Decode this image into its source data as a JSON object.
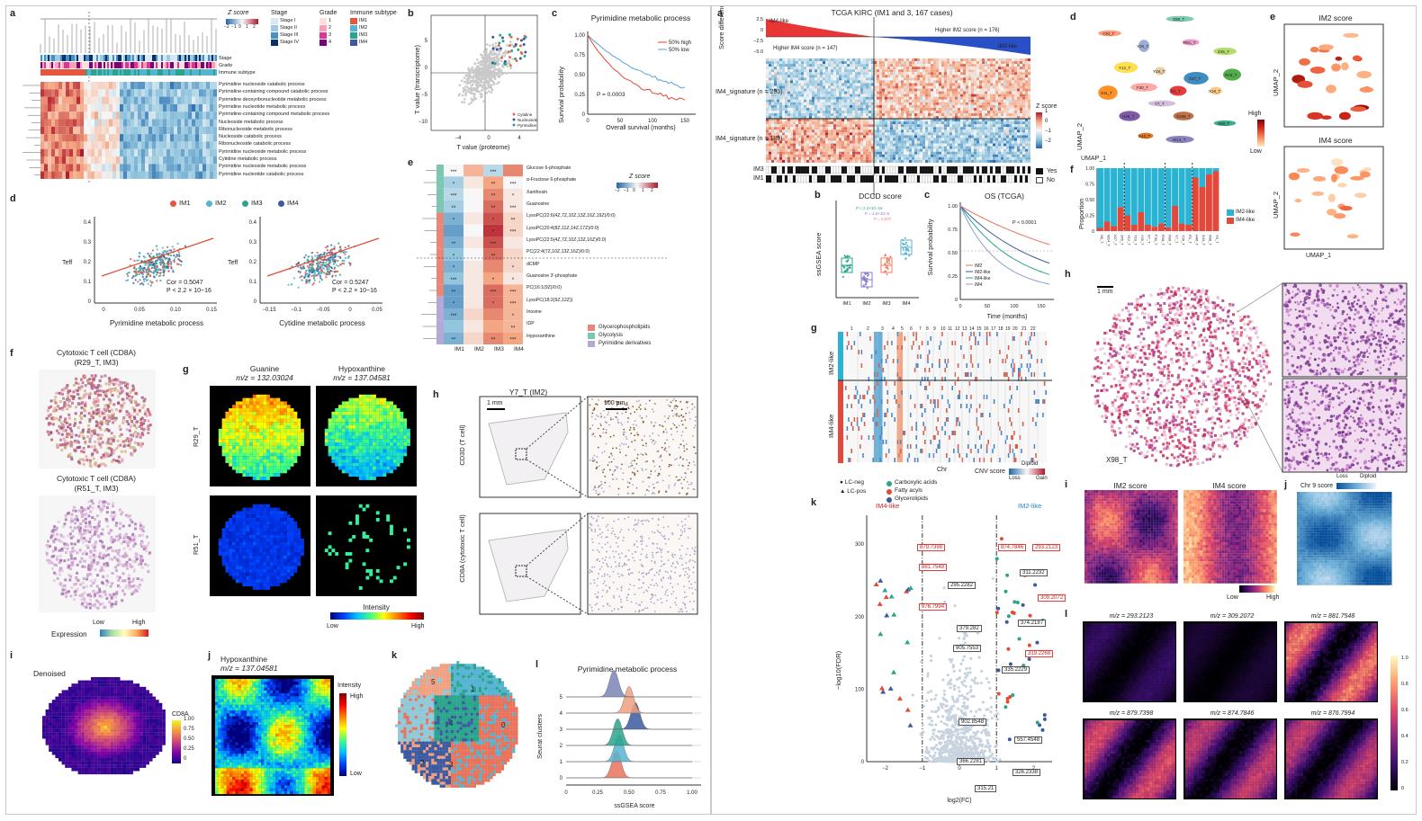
{
  "left": {
    "a": {
      "label": "a",
      "legend_titles": [
        "Z score",
        "Stage",
        "Grade",
        "Immune subtype"
      ],
      "z_ticks": [
        "−2",
        "−1",
        "0",
        "1",
        "2"
      ],
      "stage_items": [
        "Stage I",
        "Stage II",
        "Stage III",
        "Stage IV"
      ],
      "grade_items": [
        "1",
        "2",
        "3",
        "4"
      ],
      "subtype_items": [
        "IM1",
        "IM2",
        "IM3",
        "IM4"
      ],
      "track_labels": [
        "Stage",
        "Grade",
        "Immune subtype"
      ],
      "rows": [
        "Pyrimidine nucleoside catabolic process",
        "Pyrimidine-containing compound catabolic process",
        "Pyrimidine deoxyribonucleotide metabolic process",
        "Pyrimidine nucleotide metabolic process",
        "Pyrimidine-containing compound metabolic process",
        "Nucleoside metabolic process",
        "Ribonucleoside metabolic process",
        "Nucleoside catabolic process",
        "Ribonucleoside catabolic process",
        "Pyrimidine nucleoside metabolic process",
        "Cytidine metabolic process",
        "Pyrimidine nucleoside metabolic process",
        "Pyrimidine nucleotide catabolic process"
      ]
    },
    "b": {
      "label": "b",
      "xlabel": "T value (proteome)",
      "ylabel": "T value (transcriptome)",
      "xticks": [
        "−4",
        "0",
        "4"
      ],
      "yticks": [
        "−10",
        "−5",
        "0",
        "5"
      ],
      "legend": [
        "Cytidine",
        "Nucleoside",
        "Pyrimidine"
      ]
    },
    "c": {
      "label": "c",
      "title": "Pyrimidine metabolic process",
      "xlabel": "Overall survival (months)",
      "ylabel": "Survival probability",
      "xticks": [
        "0",
        "50",
        "100",
        "150"
      ],
      "yticks": [
        "0",
        "0.25",
        "0.50",
        "0.75",
        "1.00"
      ],
      "legend": [
        "50% high",
        "50% low"
      ],
      "pvalue": "P = 0.0003"
    },
    "d": {
      "label": "d",
      "legend": [
        "IM1",
        "IM2",
        "IM3",
        "IM4"
      ],
      "ylabel": "Teff",
      "yticks": [
        "0",
        "0.1",
        "0.2",
        "0.3",
        "0.4"
      ],
      "p1": {
        "xlabel": "Pyrimidine metabolic process",
        "xticks": [
          "0",
          "0.05",
          "0.10",
          "0.15"
        ],
        "cor": "Cor = 0.5047",
        "p": "P < 2.2 × 10−16"
      },
      "p2": {
        "xlabel": "Cytidine metabolic process",
        "xticks": [
          "−0.15",
          "−0.1",
          "−0.05",
          "0",
          "0.05"
        ],
        "cor": "Cor = 0.5247",
        "p": "P < 2.2 × 10−16"
      }
    },
    "e": {
      "label": "e",
      "legend_title": "Z score",
      "z_ticks": [
        "−2",
        "−1",
        "0",
        "1",
        "2"
      ],
      "xticks": [
        "IM1",
        "IM2",
        "IM3",
        "IM4"
      ],
      "rows": [
        "Glucose 6-phosphate",
        "α-Fructose 6-phosphate",
        "Xanthosin",
        "Guanosine",
        "LysoPC(22:6(4Z,7Z,10Z,13Z,16Z,19Z)/0:0)",
        "LysoPC(20:4(8Z,11Z,14Z,17Z)/0:0)",
        "LysoPC(22:5(4Z,7Z,10Z,13Z,16Z)/0:0)",
        "PC(22:4(7Z,10Z,13Z,16Z)/0:0)",
        "dCMP",
        "Guanosine 3′-phosphate",
        "PC(16:1(9Z)/0:0)",
        "LysoPC(18:2(9Z,12Z))",
        "Inosine",
        "IDP",
        "Hypoxanthine"
      ],
      "cats": [
        "Glycerophospholipids",
        "Glycolysis",
        "Pyrimidine derivatives"
      ]
    },
    "f": {
      "label": "f",
      "title1": "Cytotoxic T cell (CD8A)",
      "sub1": "(R29_T, IM3)",
      "title2": "Cytotoxic T cell (CD8A)",
      "sub2": "(R51_T, IM3)",
      "cb_low": "Low",
      "cb_high": "High",
      "cb_label": "Expression"
    },
    "g": {
      "label": "g",
      "col1": "Guanine",
      "col1mz": "m/z = 132.03024",
      "col2": "Hypoxanthine",
      "col2mz": "m/z = 137.04581",
      "row1": "R29_T",
      "row2": "R51_T",
      "cb_title": "Intensity",
      "cb_low": "Low",
      "cb_high": "High"
    },
    "h": {
      "label": "h",
      "title": "Y7_T (IM2)",
      "scale1": "1 mm",
      "scale2": "100 µm",
      "row1": "CD3D (T cell)",
      "row2": "CD8A (cytotoxic T cell)"
    },
    "i": {
      "label": "i",
      "title": "Denoised",
      "cb_title": "CD8A",
      "cb_ticks": [
        "1.00",
        "0.75",
        "0.50",
        "0.25",
        "0"
      ]
    },
    "j": {
      "label": "j",
      "title": "Hypoxanthine",
      "mz": "m/z = 137.04581",
      "cb_title": "Intensity",
      "cb_high": "High",
      "cb_low": "Low"
    },
    "k": {
      "label": "k",
      "clusters": [
        "5",
        "1",
        "4",
        "0",
        "2",
        "3"
      ]
    },
    "l": {
      "label": "l",
      "title": "Pyrimidine metabolic process",
      "xlabel": "ssGSEA score",
      "ylabel": "Seurat clusters",
      "xticks": [
        "0",
        "0.25",
        "0.50",
        "0.75",
        "1.00"
      ],
      "yticks": [
        "0",
        "1",
        "2",
        "3",
        "4",
        "5"
      ]
    }
  },
  "right": {
    "a": {
      "label": "a",
      "title": "TCGA KIRC (IM1 and 3, 167 cases)",
      "ylabel": "Score difference",
      "yticks": [
        "2.5",
        "0",
        "−2.5",
        "−5.0"
      ],
      "im4like": "IM4-like",
      "im2like": "IM2-like",
      "higher_im4": "Higher IM4 score (n = 147)",
      "higher_im2": "Higher IM2 score (n = 176)",
      "row1": "IM4_signature (n = 295)",
      "row2": "IM4_signature (n = 189)",
      "z_title": "Z score",
      "z_ticks": [
        "1",
        "0",
        "−1",
        "−2"
      ],
      "tracks": [
        "IM3",
        "IM1"
      ],
      "yes": "Yes",
      "no": "No"
    },
    "b": {
      "label": "b",
      "title": "DCCD score",
      "ylabel": "ssGSEA score",
      "xticks": [
        "IM1",
        "IM2",
        "IM3",
        "IM4"
      ],
      "pvals": [
        "P < 2.2×10−16",
        "P = 2.6×10−5",
        "P = 0.037"
      ]
    },
    "c": {
      "label": "c",
      "title": "OS (TCGA)",
      "xlabel": "Time (months)",
      "ylabel": "Survival probability",
      "xticks": [
        "0",
        "50",
        "100",
        "150"
      ],
      "yticks": [
        "0",
        "0.25",
        "0.50",
        "0.75",
        "1.00"
      ],
      "pvalue": "P < 0.0001",
      "legend": [
        "IM2",
        "IM2-like",
        "IM4-like",
        "IM4"
      ]
    },
    "d": {
      "label": "d",
      "xlabel": "UMAP_1",
      "ylabel": "UMAP_2",
      "clusters": [
        "X98_T",
        "Y20_T",
        "Y26_T",
        "R51_T",
        "Z45_T",
        "Y12_T",
        "Y19_T",
        "X27_T",
        "R18_T",
        "F30_T",
        "R1_T",
        "X19_T",
        "S11_T",
        "Y7_T",
        "H46_T",
        "S198_T",
        "X99_T",
        "X43_T",
        "W14_T"
      ]
    },
    "e": {
      "label": "e",
      "title1": "IM2 score",
      "title2": "IM4 score",
      "xlabel": "UMAP_1",
      "ylabel": "UMAP_2",
      "cb_high": "High",
      "cb_low": "Low"
    },
    "f": {
      "label": "f",
      "ylabel": "Proportion",
      "yticks": [
        "0",
        "0.25",
        "0.50",
        "0.75",
        "1.00"
      ],
      "groups": [
        "IM1",
        "IM2",
        "IM3",
        "IM4"
      ],
      "legend": [
        "IM2-like",
        "IM4-like"
      ],
      "samples": [
        "S9_T",
        "W14_T",
        "X27_T",
        "Z45_T",
        "Y12_T",
        "Y19_T",
        "Y20_T",
        "X7_T",
        "F30_T",
        "R18_T",
        "X99_T",
        "Y7_T",
        "Y26_T",
        "R1_T",
        "H46_T",
        "X43_T",
        "X98_T",
        "Y9_T"
      ],
      "im2_fraction": [
        0.95,
        0.85,
        0.92,
        0.62,
        0.75,
        0.9,
        0.7,
        0.9,
        0.93,
        0.88,
        0.94,
        0.6,
        0.88,
        0.9,
        0.15,
        0.3,
        0.1,
        0.05
      ]
    },
    "g": {
      "label": "g",
      "chrs": [
        "1",
        "2",
        "3",
        "4",
        "5",
        "6",
        "7",
        "8",
        "9",
        "10",
        "11",
        "12",
        "13",
        "14",
        "15",
        "16",
        "17",
        "18",
        "19",
        "20",
        "21",
        "22"
      ],
      "ylabel1": "IM2-like",
      "ylabel2": "IM4-like",
      "xlabel": "Chr",
      "cnv": "CNV score",
      "loss": "Loss",
      "diploid": "Diploid",
      "gain": "Gain"
    },
    "h": {
      "label": "h",
      "scale": "1 mm",
      "sample": "X98_T"
    },
    "i": {
      "label": "i",
      "title1": "IM2 score",
      "title2": "IM4 score",
      "cb_low": "Low",
      "cb_high": "High"
    },
    "j": {
      "label": "j",
      "title": "Chr 9 score",
      "loss": "Loss",
      "diploid": "Diploid"
    },
    "k": {
      "label": "k",
      "im4like": "IM4-like",
      "im2like": "IM2-like",
      "xlabel": "log2(FC)",
      "ylabel": "−log10(FDR)",
      "xticks": [
        "−2",
        "−1",
        "0",
        "1",
        "2"
      ],
      "yticks": [
        "0",
        "100",
        "200",
        "300"
      ],
      "legend_shape": [
        "LC-neg",
        "LC-pos"
      ],
      "legend_class": [
        "Carboxylic acids",
        "Fatty acyls",
        "Glycerolipids"
      ],
      "red_labels": [
        "879.7398",
        "874.7846",
        "293.2123",
        "881.7548",
        "309.2072",
        "876.7994",
        "319.2268"
      ],
      "black_labels": [
        "311.2232",
        "295.2282",
        "379.282",
        "374.2187",
        "905.7553",
        "335.2229",
        "902.8548",
        "557.4548",
        "366.2281",
        "326.2338",
        "315.21"
      ]
    },
    "l": {
      "label": "l",
      "mz": [
        "m/z = 293.2123",
        "m/z = 309.2072",
        "m/z = 881.7548",
        "m/z = 879.7398",
        "m/z = 874.7846",
        "m/z = 876.7994"
      ],
      "cb_ticks": [
        "1.0",
        "0.8",
        "0.6",
        "0.4",
        "0.2",
        "0"
      ]
    }
  },
  "colors": {
    "red": "#e24a33",
    "blue": "#3a7bd5",
    "im1": "#e8553d",
    "im2": "#56b4d3",
    "im3": "#2aa58b",
    "im4": "#3b5aa0"
  }
}
